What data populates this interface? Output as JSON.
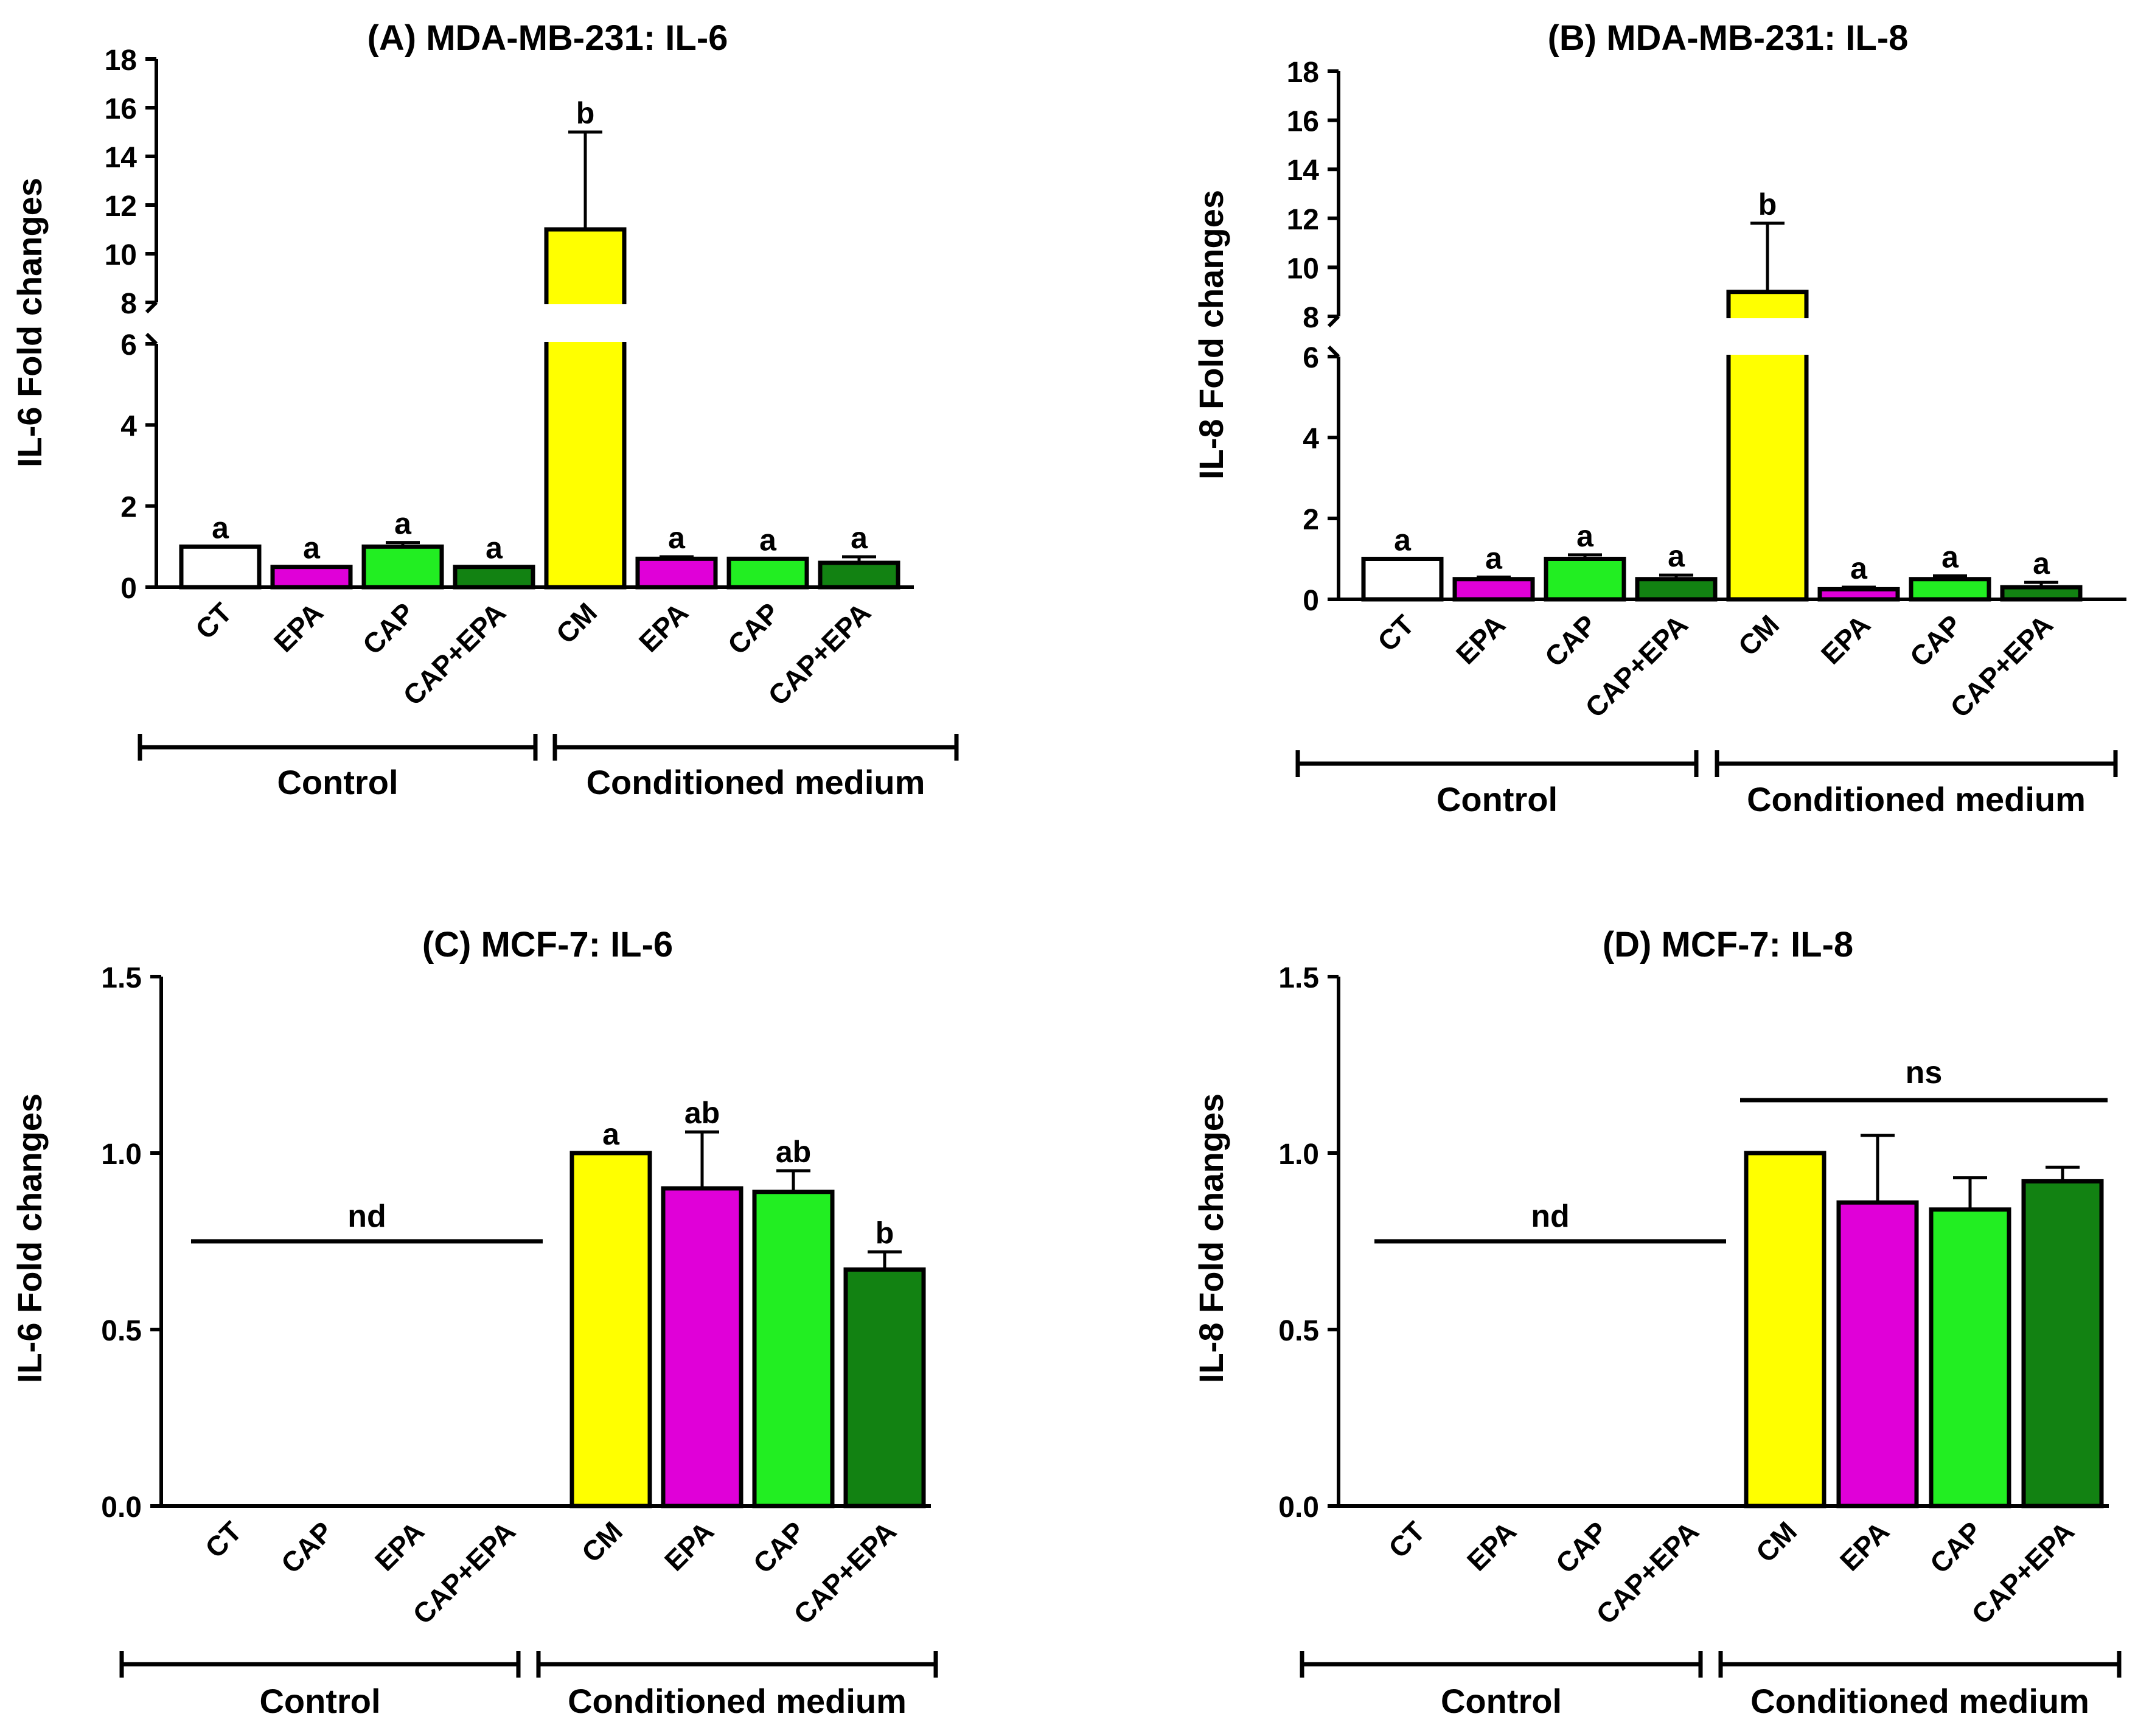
{
  "chart_data": [
    {
      "id": "A",
      "type": "bar",
      "title": "(A) MDA-MB-231: IL-6",
      "ylabel": "IL-6 Fold changes",
      "broken_axis": true,
      "lower_ticks": [
        "0",
        "2",
        "4",
        "6"
      ],
      "upper_ticks": [
        "8",
        "10",
        "12",
        "14",
        "16",
        "18"
      ],
      "ylim_lower": [
        0,
        6
      ],
      "ylim_upper": [
        8,
        18
      ],
      "categories": [
        "CT",
        "EPA",
        "CAP",
        "CAP+EPA",
        "CM",
        "EPA",
        "CAP",
        "CAP+EPA"
      ],
      "values": [
        1.0,
        0.5,
        1.0,
        0.5,
        11.0,
        0.7,
        0.7,
        0.6
      ],
      "errors": [
        0,
        0,
        0.1,
        0,
        4.0,
        0.05,
        0,
        0.15
      ],
      "letters": [
        "a",
        "a",
        "a",
        "a",
        "b",
        "a",
        "a",
        "a"
      ],
      "colors": [
        "#ffffff",
        "#e000d8",
        "#22ee22",
        "#128212",
        "#ffff00",
        "#e000d8",
        "#22ee22",
        "#128212"
      ],
      "groups": [
        "Control",
        "Conditioned medium"
      ]
    },
    {
      "id": "B",
      "type": "bar",
      "title": "(B) MDA-MB-231: IL-8",
      "ylabel": "IL-8 Fold changes",
      "broken_axis": true,
      "lower_ticks": [
        "0",
        "2",
        "4",
        "6"
      ],
      "upper_ticks": [
        "8",
        "10",
        "12",
        "14",
        "16",
        "18"
      ],
      "ylim_lower": [
        0,
        6
      ],
      "ylim_upper": [
        8,
        18
      ],
      "categories": [
        "CT",
        "EPA",
        "CAP",
        "CAP+EPA",
        "CM",
        "EPA",
        "CAP",
        "CAP+EPA"
      ],
      "values": [
        1.0,
        0.5,
        1.0,
        0.5,
        9.0,
        0.25,
        0.5,
        0.3
      ],
      "errors": [
        0,
        0.05,
        0.1,
        0.1,
        2.8,
        0.05,
        0.08,
        0.12
      ],
      "letters": [
        "a",
        "a",
        "a",
        "a",
        "b",
        "a",
        "a",
        "a"
      ],
      "colors": [
        "#ffffff",
        "#e000d8",
        "#22ee22",
        "#128212",
        "#ffff00",
        "#e000d8",
        "#22ee22",
        "#128212"
      ],
      "groups": [
        "Control",
        "Conditioned medium"
      ]
    },
    {
      "id": "C",
      "type": "bar",
      "title": "(C) MCF-7: IL-6",
      "ylabel": "IL-6 Fold changes",
      "broken_axis": false,
      "ticks": [
        "0.0",
        "0.5",
        "1.0",
        "1.5"
      ],
      "ylim": [
        0,
        1.5
      ],
      "categories": [
        "CT",
        "CAP",
        "EPA",
        "CAP+EPA",
        "CM",
        "EPA",
        "CAP",
        "CAP+EPA"
      ],
      "values": [
        0,
        0,
        0,
        0,
        1.0,
        0.9,
        0.89,
        0.67
      ],
      "errors": [
        0,
        0,
        0,
        0,
        0,
        0.16,
        0.06,
        0.05
      ],
      "letters": [
        "",
        "",
        "",
        "",
        "a",
        "ab",
        "ab",
        "b"
      ],
      "colors": [
        "#ffffff",
        "#22ee22",
        "#e000d8",
        "#128212",
        "#ffff00",
        "#e000d8",
        "#22ee22",
        "#128212"
      ],
      "nd_label": "nd",
      "nd_level": 0.75,
      "groups": [
        "Control",
        "Conditioned medium"
      ]
    },
    {
      "id": "D",
      "type": "bar",
      "title": "(D) MCF-7: IL-8",
      "ylabel": "IL-8 Fold changes",
      "broken_axis": false,
      "ticks": [
        "0.0",
        "0.5",
        "1.0",
        "1.5"
      ],
      "ylim": [
        0,
        1.5
      ],
      "categories": [
        "CT",
        "EPA",
        "CAP",
        "CAP+EPA",
        "CM",
        "EPA",
        "CAP",
        "CAP+EPA"
      ],
      "values": [
        0,
        0,
        0,
        0,
        1.0,
        0.86,
        0.84,
        0.92
      ],
      "errors": [
        0,
        0,
        0,
        0,
        0,
        0.19,
        0.09,
        0.04
      ],
      "letters": [
        "",
        "",
        "",
        "",
        "",
        "",
        "",
        ""
      ],
      "colors": [
        "#ffffff",
        "#e000d8",
        "#22ee22",
        "#128212",
        "#ffff00",
        "#e000d8",
        "#22ee22",
        "#128212"
      ],
      "nd_label": "nd",
      "nd_level": 0.75,
      "ns_label": "ns",
      "ns_level": 1.15,
      "groups": [
        "Control",
        "Conditioned medium"
      ]
    }
  ]
}
